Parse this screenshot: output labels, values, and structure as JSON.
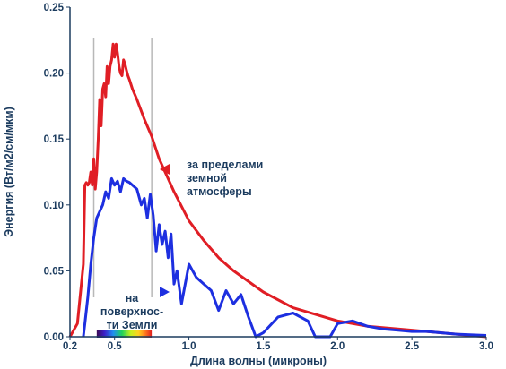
{
  "chart_data": {
    "type": "line",
    "xlabel": "Длина волны (микроны)",
    "ylabel": "Энергия (Вт/м2/см/мкм)",
    "xlim": [
      0.2,
      3.0
    ],
    "ylim": [
      0,
      0.25
    ],
    "xticks": [
      "0.2",
      "0.5",
      "1.0",
      "1.5",
      "2.0",
      "2.5",
      "3.0"
    ],
    "yticks": [
      "0.00",
      "0.05",
      "0.10",
      "0.15",
      "0.20",
      "0.25"
    ],
    "grid": false,
    "visible_band": [
      0.36,
      0.75
    ],
    "spectrum_bar": [
      0.38,
      0.75
    ],
    "series": [
      {
        "key": "outside",
        "color": "#e01e25",
        "x": [
          0.2,
          0.25,
          0.29,
          0.3,
          0.31,
          0.32,
          0.33,
          0.34,
          0.35,
          0.36,
          0.37,
          0.38,
          0.39,
          0.4,
          0.41,
          0.42,
          0.43,
          0.44,
          0.45,
          0.46,
          0.47,
          0.48,
          0.49,
          0.5,
          0.51,
          0.52,
          0.53,
          0.54,
          0.55,
          0.56,
          0.57,
          0.58,
          0.59,
          0.6,
          0.62,
          0.65,
          0.7,
          0.75,
          0.8,
          0.9,
          1.0,
          1.1,
          1.2,
          1.3,
          1.5,
          1.7,
          2.0,
          2.2,
          2.5,
          2.8,
          3.0
        ],
        "y": [
          0.0,
          0.01,
          0.055,
          0.115,
          0.117,
          0.115,
          0.117,
          0.125,
          0.115,
          0.135,
          0.112,
          0.125,
          0.15,
          0.18,
          0.16,
          0.188,
          0.192,
          0.182,
          0.205,
          0.192,
          0.205,
          0.21,
          0.222,
          0.212,
          0.222,
          0.215,
          0.205,
          0.2,
          0.198,
          0.21,
          0.207,
          0.202,
          0.198,
          0.195,
          0.188,
          0.18,
          0.165,
          0.152,
          0.135,
          0.11,
          0.088,
          0.073,
          0.06,
          0.05,
          0.034,
          0.022,
          0.012,
          0.008,
          0.005,
          0.002,
          0.0
        ]
      },
      {
        "key": "surface",
        "color": "#1d2fe0",
        "x": [
          0.29,
          0.3,
          0.32,
          0.34,
          0.36,
          0.38,
          0.4,
          0.42,
          0.44,
          0.46,
          0.48,
          0.5,
          0.52,
          0.54,
          0.56,
          0.58,
          0.6,
          0.65,
          0.68,
          0.7,
          0.72,
          0.74,
          0.76,
          0.78,
          0.8,
          0.82,
          0.84,
          0.86,
          0.88,
          0.9,
          0.92,
          0.95,
          1.0,
          1.05,
          1.1,
          1.15,
          1.2,
          1.25,
          1.3,
          1.35,
          1.4,
          1.45,
          1.5,
          1.6,
          1.7,
          1.8,
          1.85,
          1.95,
          2.0,
          2.1,
          2.2,
          2.3,
          2.4,
          2.5,
          2.6,
          2.7,
          2.8,
          3.0
        ],
        "y": [
          0.0,
          0.01,
          0.03,
          0.055,
          0.075,
          0.09,
          0.095,
          0.1,
          0.11,
          0.105,
          0.12,
          0.115,
          0.118,
          0.11,
          0.12,
          0.118,
          0.117,
          0.112,
          0.1,
          0.105,
          0.09,
          0.108,
          0.092,
          0.065,
          0.085,
          0.07,
          0.08,
          0.06,
          0.078,
          0.04,
          0.05,
          0.025,
          0.055,
          0.045,
          0.04,
          0.035,
          0.02,
          0.035,
          0.025,
          0.032,
          0.015,
          0.0,
          0.003,
          0.015,
          0.018,
          0.012,
          0.0,
          0.0,
          0.01,
          0.012,
          0.008,
          0.006,
          0.005,
          0.004,
          0.004,
          0.003,
          0.002,
          0.001
        ]
      }
    ],
    "annotations": [
      {
        "key": "outside",
        "lines": [
          "за пределами",
          "земной",
          "атмосферы"
        ],
        "arrow": "left",
        "color": "#e01e25"
      },
      {
        "key": "surface",
        "lines": [
          "на",
          "поверхнос-",
          "ти Земли"
        ],
        "arrow": "right",
        "color": "#1d2fe0"
      }
    ]
  }
}
